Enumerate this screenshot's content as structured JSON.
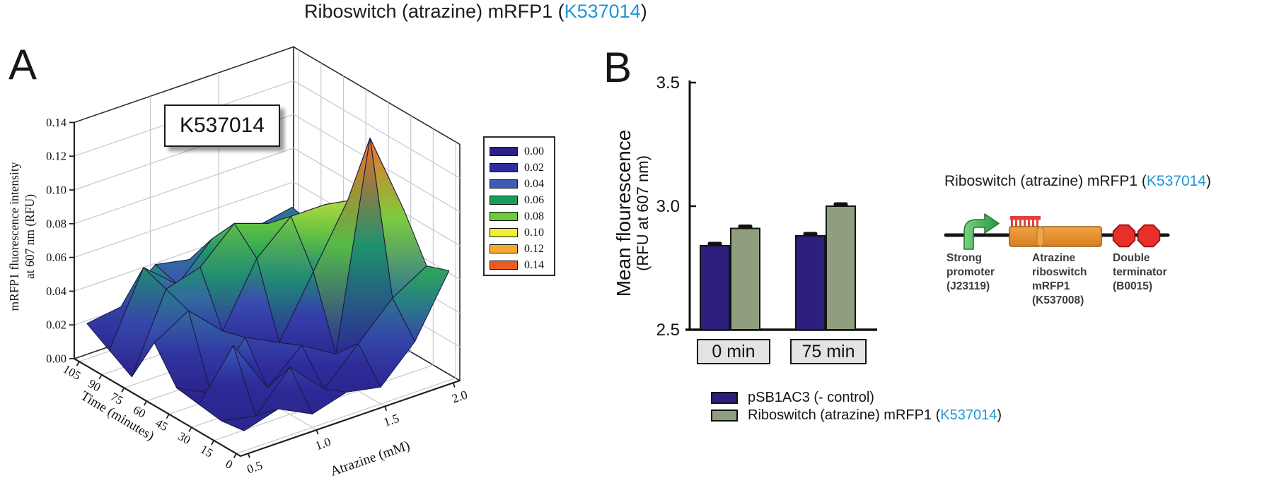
{
  "page_title": {
    "prefix": "Riboswitch (atrazine)  mRFP1 (",
    "accession": "K537014",
    "suffix": ")"
  },
  "accent_blue": "#1e97d6",
  "panel_a": {
    "letter": "A",
    "annotation": "K537014"
  },
  "panel_b": {
    "letter": "B"
  },
  "chart_data": [
    {
      "type": "surface3d",
      "panel": "A",
      "annotation": "K537014",
      "xlabel": "Time (minutes)",
      "x_values": [
        0,
        15,
        30,
        45,
        60,
        75,
        90,
        105
      ],
      "x_tick_labels": [
        "105",
        "90",
        "75",
        "60",
        "45",
        "30",
        "15",
        "0"
      ],
      "ylabel": "Atrazine (mM)",
      "y_values": [
        0.5,
        0.75,
        1.0,
        1.25,
        1.5,
        1.75,
        2.0
      ],
      "y_tick_values": [
        0.5,
        1.0,
        1.5,
        2.0
      ],
      "y_tick_labels": [
        "0.5",
        "1.0",
        "1.5",
        "2.0"
      ],
      "zlabel_lines": [
        "mRFP1 fluorescence intensity",
        "at 607 nm (RFU)"
      ],
      "zlim": [
        0.0,
        0.14
      ],
      "z_tick_labels": [
        "0.00",
        "0.02",
        "0.04",
        "0.06",
        "0.08",
        "0.10",
        "0.12",
        "0.14"
      ],
      "z_tick_values": [
        0.0,
        0.02,
        0.04,
        0.06,
        0.08,
        0.1,
        0.12,
        0.14
      ],
      "legend": {
        "levels": [
          "0.00",
          "0.02",
          "0.04",
          "0.06",
          "0.08",
          "0.10",
          "0.12",
          "0.14"
        ],
        "colors": [
          "#2a2086",
          "#2e2d9d",
          "#3c5bb5",
          "#189d5c",
          "#70c83e",
          "#f0ee39",
          "#f5a930",
          "#e95c22"
        ]
      },
      "z_values_rows_time_cols_atrazine": [
        [
          0.012,
          0.018,
          0.008,
          0.014,
          0.01,
          0.03,
          0.065
        ],
        [
          0.01,
          0.006,
          0.028,
          0.008,
          0.028,
          0.048,
          0.06
        ],
        [
          0.012,
          0.04,
          0.008,
          0.026,
          0.014,
          0.135,
          0.085
        ],
        [
          0.014,
          0.004,
          0.03,
          0.02,
          0.055,
          0.09,
          0.07
        ],
        [
          0.033,
          0.045,
          0.026,
          0.062,
          0.08,
          0.08,
          0.065
        ],
        [
          0.005,
          0.05,
          0.056,
          0.075,
          0.068,
          0.065,
          0.058
        ],
        [
          0.013,
          0.055,
          0.038,
          0.058,
          0.05,
          0.048,
          0.045
        ],
        [
          0.021,
          0.024,
          0.042,
          0.038,
          0.048,
          0.044,
          0.048
        ]
      ],
      "grid": true
    },
    {
      "type": "bar",
      "panel": "B",
      "ylabel_lines": [
        "Mean flourescence",
        "(RFU at 607 nm)"
      ],
      "ylim": [
        2.5,
        3.5
      ],
      "y_tick_labels": [
        "2.5",
        "3.0",
        "3.5"
      ],
      "y_tick_values": [
        2.5,
        3.0,
        3.5
      ],
      "categories": [
        "0 min",
        "75 min"
      ],
      "series": [
        {
          "name": "pSB1AC3 (- control)",
          "color": "#2c1f7e",
          "values": [
            2.84,
            2.88
          ],
          "errors": [
            0.006,
            0.006
          ]
        },
        {
          "name": "Riboswitch (atrazine) mRFP1 (K537014)",
          "name_prefix": "Riboswitch (atrazine) mRFP1 (",
          "name_accession": "K537014",
          "name_suffix": ")",
          "color": "#8e9e7e",
          "values": [
            2.91,
            3.0
          ],
          "errors": [
            0.006,
            0.004
          ]
        }
      ],
      "legend_position": "bottom",
      "grid": false
    }
  ],
  "construct": {
    "title_prefix": "Riboswitch (atrazine) mRFP1 (",
    "title_accession": "K537014",
    "title_suffix": ")",
    "parts": [
      {
        "icon": "promoter-arrow",
        "color": "#3fa44c",
        "lines": [
          "Strong",
          "promoter",
          "(J23119)"
        ]
      },
      {
        "icon": "riboswitch-bar",
        "color": "#e28a2e",
        "lines": [
          "Atrazine",
          "riboswitch",
          "mRFP1",
          "(K537008)"
        ]
      },
      {
        "icon": "terminator-octagons",
        "color": "#e8302b",
        "lines": [
          "Double",
          "terminator",
          "(B0015)"
        ]
      }
    ]
  }
}
